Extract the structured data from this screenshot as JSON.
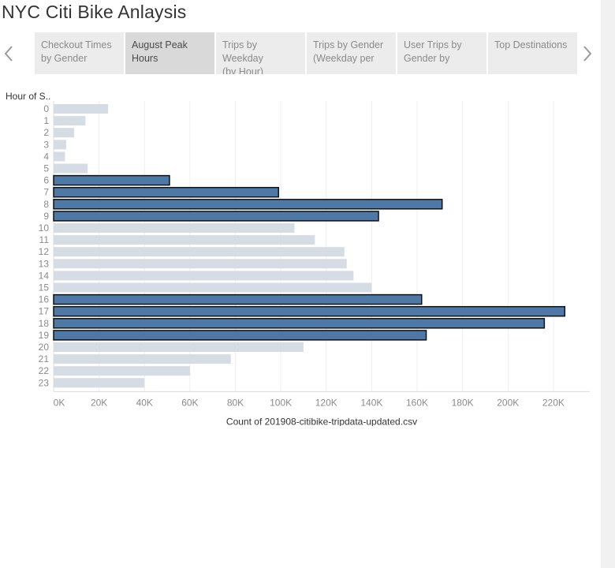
{
  "title": "NYC Citi Bike Anlaysis",
  "tabs": [
    {
      "label_line1": "Checkout Times",
      "label_line2": "by Gender",
      "active": false
    },
    {
      "label_line1": "August Peak",
      "label_line2": "Hours",
      "active": true
    },
    {
      "label_line1": "Trips by Weekday",
      "label_line2": "(by Hour)",
      "active": false
    },
    {
      "label_line1": "Trips by Gender",
      "label_line2": "(Weekday per",
      "active": false
    },
    {
      "label_line1": "User Trips by",
      "label_line2": "Gender by",
      "active": false
    },
    {
      "label_line1": "Top Destinations",
      "label_line2": "",
      "active": false
    }
  ],
  "icons": {
    "prev": "chevron-left-icon",
    "next": "chevron-right-icon"
  },
  "colors": {
    "highlight": "#4e79a7",
    "muted": "#d6dce4",
    "outline": "#111111"
  },
  "chart_data": {
    "type": "bar",
    "orientation": "horizontal",
    "ylabel": "Hour of S..",
    "xlabel": "Count of 201908-citibike-tripdata-updated.csv",
    "categories": [
      "0",
      "1",
      "2",
      "3",
      "4",
      "5",
      "6",
      "7",
      "8",
      "9",
      "10",
      "11",
      "12",
      "13",
      "14",
      "15",
      "16",
      "17",
      "18",
      "19",
      "20",
      "21",
      "22",
      "23"
    ],
    "values": [
      24000,
      14000,
      9000,
      5500,
      5000,
      15000,
      51000,
      99000,
      171000,
      143000,
      106000,
      115000,
      128000,
      129000,
      132000,
      140000,
      162000,
      225000,
      216000,
      164000,
      110000,
      78000,
      60000,
      40000
    ],
    "highlighted": [
      6,
      7,
      8,
      9,
      16,
      17,
      18,
      19
    ],
    "xticks": [
      "0K",
      "20K",
      "40K",
      "60K",
      "80K",
      "100K",
      "120K",
      "140K",
      "160K",
      "180K",
      "200K",
      "220K"
    ],
    "xlim": [
      0,
      236000
    ],
    "grid": "vertical"
  }
}
